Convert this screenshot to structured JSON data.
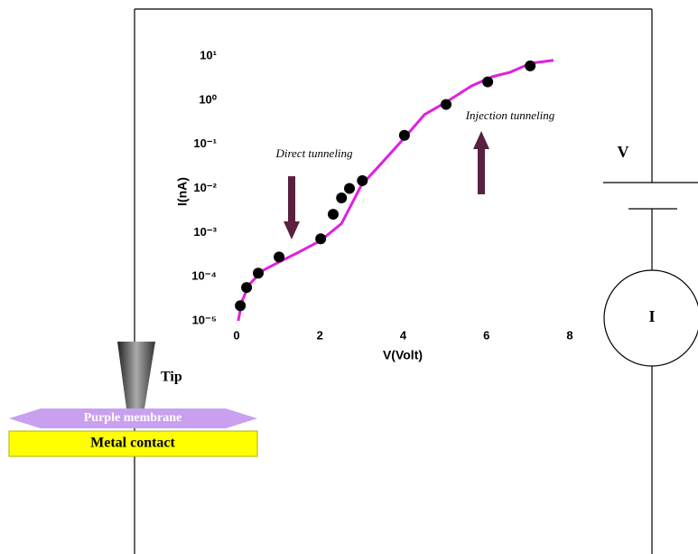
{
  "chart_data": {
    "type": "scatter",
    "xlabel": "V(Volt)",
    "ylabel": "I(nA)",
    "xlim": [
      0,
      8
    ],
    "xticks": [
      0,
      2,
      4,
      6,
      8
    ],
    "ylim": [
      1e-05,
      10
    ],
    "yscale": "log",
    "yticks": [
      {
        "value": 1e-05,
        "label": "10⁻⁵"
      },
      {
        "value": 0.0001,
        "label": "10⁻⁴"
      },
      {
        "value": 0.001,
        "label": "10⁻³"
      },
      {
        "value": 0.01,
        "label": "10⁻²"
      },
      {
        "value": 0.1,
        "label": "10⁻¹"
      },
      {
        "value": 1,
        "label": "10⁰"
      },
      {
        "value": 10,
        "label": "10¹"
      }
    ],
    "annotations": [
      "Direct tunneling",
      "Injection tunneling"
    ],
    "series": [
      {
        "type": "scatter",
        "color": "#000000",
        "x": [
          0.09,
          0.24,
          0.52,
          1.02,
          2.02,
          2.32,
          2.52,
          2.71,
          3.02,
          4.03,
          5.03,
          6.03,
          7.05
        ],
        "values": [
          2.2e-05,
          5.7e-05,
          0.00012,
          0.00028,
          0.00072,
          0.0026,
          0.0061,
          0.01,
          0.015,
          0.16,
          0.8,
          2.6,
          6.0
        ]
      },
      {
        "type": "line",
        "color": "#e020e0",
        "x": [
          0.04,
          0.13,
          0.3,
          0.61,
          1.04,
          1.47,
          2.02,
          2.52,
          3.0,
          3.43,
          4.03,
          4.51,
          5.03,
          5.64,
          6.14,
          6.57,
          7.07,
          7.61
        ],
        "values": [
          1e-05,
          2.8e-05,
          6.6e-05,
          0.000135,
          0.00022,
          0.00035,
          0.00066,
          0.0016,
          0.012,
          0.033,
          0.14,
          0.47,
          0.9,
          2.1,
          3.4,
          4.3,
          6.9,
          8.0
        ]
      }
    ]
  },
  "diagram": {
    "tip": "Tip",
    "membrane": "Purple membrane",
    "contact": "Metal contact",
    "voltage": "V",
    "current": "I"
  }
}
